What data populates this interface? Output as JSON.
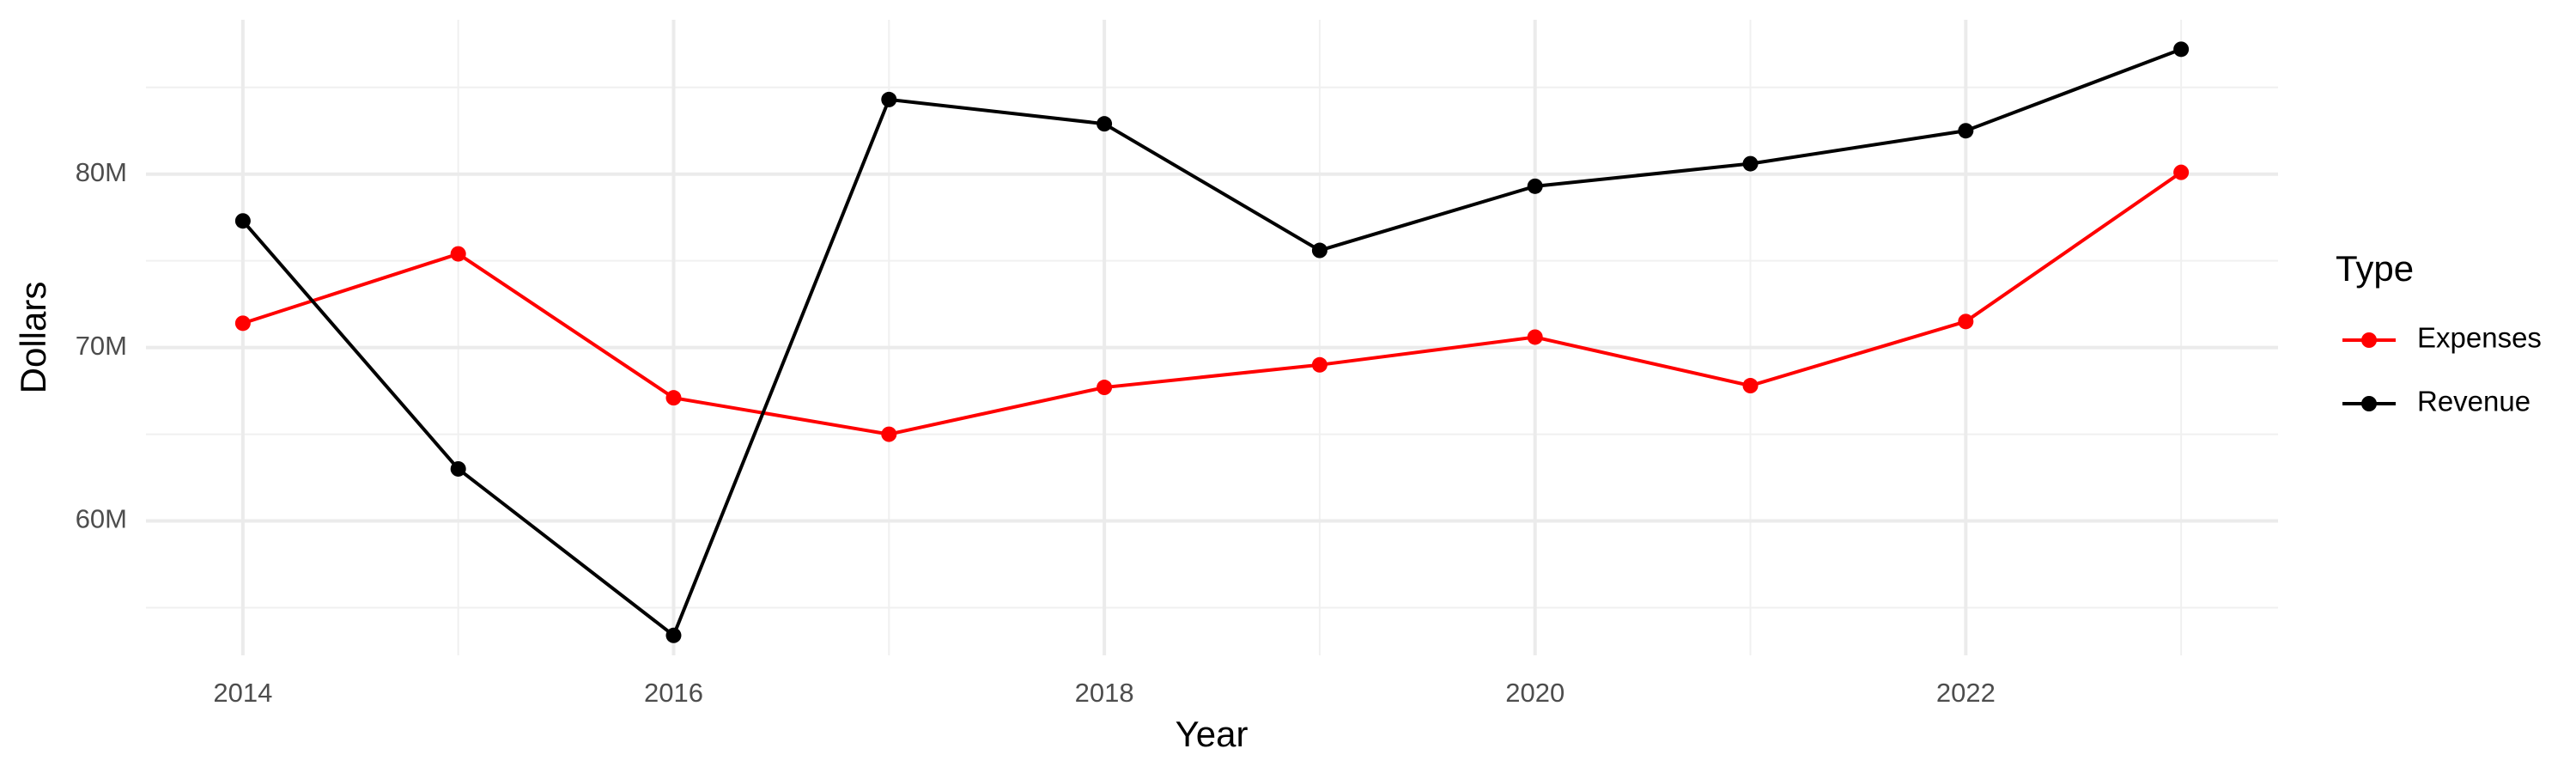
{
  "chart_data": {
    "type": "line",
    "x_label": "Year",
    "y_label": "Dollars",
    "legend_title": "Type",
    "legend_position": "right",
    "grid": true,
    "x": [
      2014,
      2015,
      2016,
      2017,
      2018,
      2019,
      2020,
      2021,
      2022,
      2023
    ],
    "series": [
      {
        "name": "Expenses",
        "color": "#ff0000",
        "values": [
          71400000,
          75400000,
          67100000,
          65000000,
          67700000,
          69000000,
          70600000,
          67800000,
          71500000,
          80100000
        ]
      },
      {
        "name": "Revenue",
        "color": "#000000",
        "values": [
          77300000,
          63000000,
          53400000,
          84300000,
          82900000,
          75600000,
          79300000,
          80600000,
          82500000,
          87200000
        ]
      }
    ],
    "xlim": [
      2013.55,
      2023.45
    ],
    "xticks": [
      2014,
      2016,
      2018,
      2020,
      2022
    ],
    "ylim": [
      52250000,
      88900000
    ],
    "yticks": [
      {
        "value": 60000000,
        "label": "60M"
      },
      {
        "value": 70000000,
        "label": "70M"
      },
      {
        "value": 80000000,
        "label": "80M"
      }
    ]
  }
}
